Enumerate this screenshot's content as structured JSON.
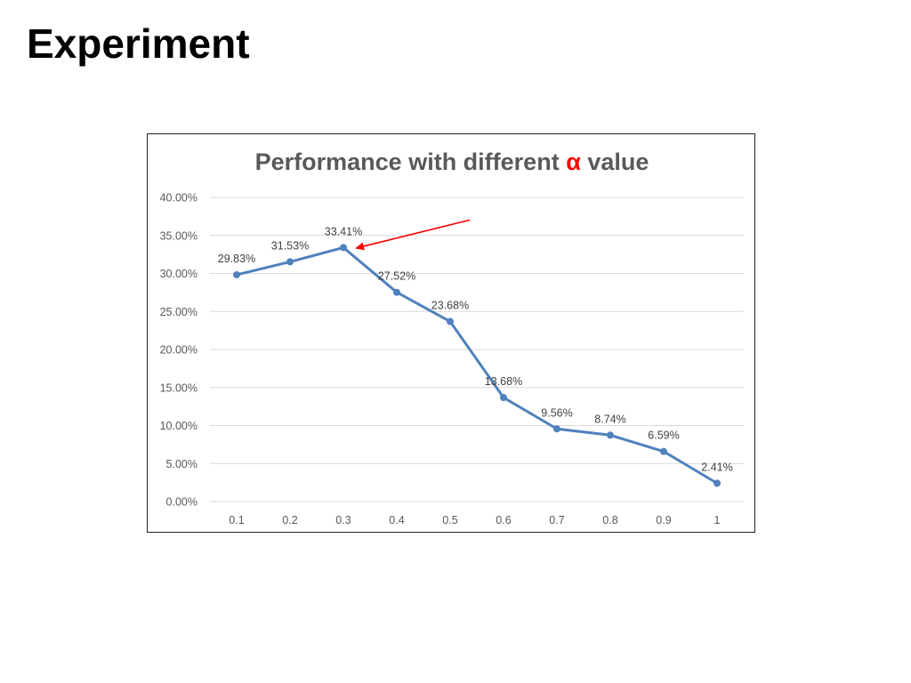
{
  "slide": {
    "title": "Experiment"
  },
  "chart_data": {
    "type": "line",
    "title": "Performance with different α value",
    "title_parts": {
      "before": "Performance with different ",
      "symbol": "α",
      "after": " value"
    },
    "categories": [
      "0.1",
      "0.2",
      "0.3",
      "0.4",
      "0.5",
      "0.6",
      "0.7",
      "0.8",
      "0.9",
      "1"
    ],
    "series": [
      {
        "values": [
          29.83,
          31.53,
          33.41,
          27.52,
          23.68,
          13.68,
          9.56,
          8.74,
          6.59,
          2.41
        ],
        "labels": [
          "29.83%",
          "31.53%",
          "33.41%",
          "27.52%",
          "23.68%",
          "13.68%",
          "9.56%",
          "8.74%",
          "6.59%",
          "2.41%"
        ]
      }
    ],
    "y_ticks": [
      "0.00%",
      "5.00%",
      "10.00%",
      "15.00%",
      "20.00%",
      "25.00%",
      "30.00%",
      "35.00%",
      "40.00%"
    ],
    "ylim": [
      0,
      40
    ],
    "grid": true,
    "legend": "none",
    "annotation": {
      "type": "arrow",
      "points_to": "0.3",
      "color": "#ff0000"
    },
    "colors": {
      "line": "#4f81bd",
      "grid": "#d9d9d9",
      "tick_text": "#595959",
      "title_symbol": "#ff0000"
    }
  }
}
